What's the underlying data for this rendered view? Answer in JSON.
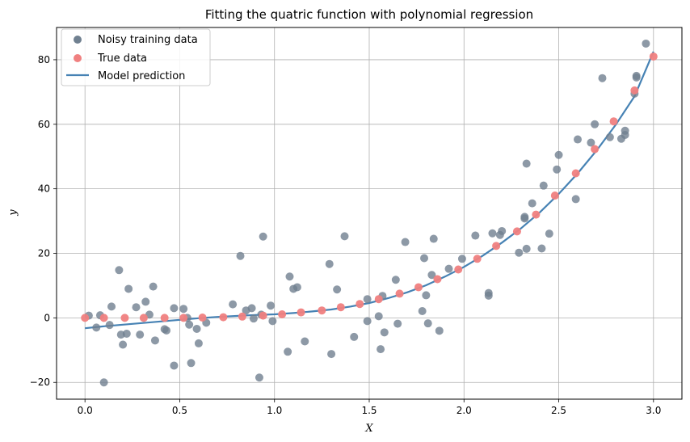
{
  "chart_data": {
    "type": "scatter",
    "title": "Fitting the quatric function with polynomial regression",
    "xlabel": "X",
    "ylabel": "y",
    "xlim": [
      -0.15,
      3.15
    ],
    "ylim": [
      -25.2,
      90.0
    ],
    "xticks": [
      0.0,
      0.5,
      1.0,
      1.5,
      2.0,
      2.5,
      3.0
    ],
    "xtick_labels": [
      "0.0",
      "0.5",
      "1.0",
      "1.5",
      "2.0",
      "2.5",
      "3.0"
    ],
    "yticks": [
      -20,
      0,
      20,
      40,
      60,
      80
    ],
    "ytick_labels": [
      "−20",
      "0",
      "20",
      "40",
      "60",
      "80"
    ],
    "grid": true,
    "legend_position": "upper-left",
    "colors": {
      "noisy": "#708090",
      "true": "#f08080",
      "model": "#4682b4"
    },
    "series": [
      {
        "name": "Noisy training data",
        "kind": "scatter",
        "points": [
          [
            0.02,
            0.7
          ],
          [
            0.06,
            -3.0
          ],
          [
            0.08,
            0.8
          ],
          [
            0.1,
            -20.0
          ],
          [
            0.13,
            -2.2
          ],
          [
            0.14,
            3.5
          ],
          [
            0.18,
            14.8
          ],
          [
            0.19,
            -5.2
          ],
          [
            0.2,
            -8.3
          ],
          [
            0.22,
            -4.9
          ],
          [
            0.23,
            9.0
          ],
          [
            0.27,
            3.3
          ],
          [
            0.29,
            -5.2
          ],
          [
            0.32,
            5.0
          ],
          [
            0.34,
            1.0
          ],
          [
            0.36,
            9.7
          ],
          [
            0.37,
            -7.0
          ],
          [
            0.42,
            -3.5
          ],
          [
            0.43,
            -3.9
          ],
          [
            0.47,
            3.0
          ],
          [
            0.47,
            -14.8
          ],
          [
            0.52,
            2.8
          ],
          [
            0.54,
            0.0
          ],
          [
            0.55,
            -2.1
          ],
          [
            0.56,
            -14.0
          ],
          [
            0.59,
            -3.4
          ],
          [
            0.6,
            -7.9
          ],
          [
            0.64,
            -1.5
          ],
          [
            0.78,
            4.2
          ],
          [
            0.82,
            19.2
          ],
          [
            0.85,
            2.3
          ],
          [
            0.88,
            3.0
          ],
          [
            0.89,
            -0.2
          ],
          [
            0.92,
            -18.5
          ],
          [
            0.93,
            1.0
          ],
          [
            0.94,
            25.2
          ],
          [
            0.98,
            3.8
          ],
          [
            0.99,
            -1.0
          ],
          [
            1.07,
            -10.5
          ],
          [
            1.08,
            12.8
          ],
          [
            1.1,
            9.0
          ],
          [
            1.12,
            9.5
          ],
          [
            1.16,
            -7.3
          ],
          [
            1.29,
            16.7
          ],
          [
            1.3,
            -11.2
          ],
          [
            1.33,
            8.8
          ],
          [
            1.37,
            25.3
          ],
          [
            1.42,
            -5.9
          ],
          [
            1.49,
            -1.0
          ],
          [
            1.49,
            5.8
          ],
          [
            1.55,
            0.5
          ],
          [
            1.56,
            -9.7
          ],
          [
            1.57,
            6.8
          ],
          [
            1.58,
            -4.5
          ],
          [
            1.64,
            11.8
          ],
          [
            1.65,
            -1.8
          ],
          [
            1.69,
            23.5
          ],
          [
            1.78,
            2.1
          ],
          [
            1.79,
            18.5
          ],
          [
            1.8,
            7.0
          ],
          [
            1.81,
            -1.7
          ],
          [
            1.83,
            13.3
          ],
          [
            1.84,
            24.5
          ],
          [
            1.87,
            -4.0
          ],
          [
            1.92,
            15.2
          ],
          [
            1.99,
            18.3
          ],
          [
            2.06,
            25.5
          ],
          [
            2.13,
            7.7
          ],
          [
            2.13,
            6.9
          ],
          [
            2.15,
            26.2
          ],
          [
            2.19,
            25.7
          ],
          [
            2.2,
            26.9
          ],
          [
            2.29,
            20.2
          ],
          [
            2.32,
            31.3
          ],
          [
            2.32,
            30.8
          ],
          [
            2.33,
            21.4
          ],
          [
            2.33,
            47.8
          ],
          [
            2.36,
            35.5
          ],
          [
            2.41,
            21.5
          ],
          [
            2.42,
            41.0
          ],
          [
            2.45,
            26.1
          ],
          [
            2.49,
            46.0
          ],
          [
            2.5,
            50.5
          ],
          [
            2.59,
            36.8
          ],
          [
            2.6,
            55.3
          ],
          [
            2.67,
            54.3
          ],
          [
            2.69,
            60.0
          ],
          [
            2.73,
            74.3
          ],
          [
            2.77,
            56.0
          ],
          [
            2.83,
            55.5
          ],
          [
            2.85,
            56.7
          ],
          [
            2.85,
            58.0
          ],
          [
            2.9,
            69.5
          ],
          [
            2.91,
            75.0
          ],
          [
            2.91,
            74.5
          ],
          [
            2.96,
            85.0
          ]
        ]
      },
      {
        "name": "True data",
        "kind": "scatter",
        "points": [
          [
            0.0,
            0.0
          ],
          [
            0.1,
            0.0
          ],
          [
            0.21,
            0.0
          ],
          [
            0.31,
            0.0
          ],
          [
            0.42,
            0.0
          ],
          [
            0.52,
            0.0
          ],
          [
            0.62,
            0.1
          ],
          [
            0.73,
            0.2
          ],
          [
            0.83,
            0.4
          ],
          [
            0.94,
            0.7
          ],
          [
            1.04,
            1.1
          ],
          [
            1.14,
            1.7
          ],
          [
            1.25,
            2.3
          ],
          [
            1.35,
            3.3
          ],
          [
            1.45,
            4.3
          ],
          [
            1.55,
            5.8
          ],
          [
            1.66,
            7.5
          ],
          [
            1.76,
            9.5
          ],
          [
            1.86,
            12.0
          ],
          [
            1.97,
            15.0
          ],
          [
            2.07,
            18.3
          ],
          [
            2.17,
            22.3
          ],
          [
            2.28,
            26.8
          ],
          [
            2.38,
            32.0
          ],
          [
            2.48,
            37.9
          ],
          [
            2.59,
            44.8
          ],
          [
            2.69,
            52.3
          ],
          [
            2.79,
            60.9
          ],
          [
            2.9,
            70.5
          ],
          [
            3.0,
            81.0
          ]
        ]
      },
      {
        "name": "Model prediction",
        "kind": "line",
        "points": [
          [
            0.0,
            -3.2
          ],
          [
            0.1,
            -2.6
          ],
          [
            0.2,
            -2.1
          ],
          [
            0.3,
            -1.6
          ],
          [
            0.4,
            -1.1
          ],
          [
            0.5,
            -0.6
          ],
          [
            0.6,
            -0.1
          ],
          [
            0.7,
            0.3
          ],
          [
            0.8,
            0.6
          ],
          [
            0.9,
            0.9
          ],
          [
            1.0,
            1.1
          ],
          [
            1.1,
            1.5
          ],
          [
            1.2,
            2.0
          ],
          [
            1.3,
            2.6
          ],
          [
            1.4,
            3.5
          ],
          [
            1.5,
            4.6
          ],
          [
            1.6,
            6.1
          ],
          [
            1.7,
            7.9
          ],
          [
            1.8,
            10.1
          ],
          [
            1.9,
            12.8
          ],
          [
            2.0,
            15.8
          ],
          [
            2.1,
            19.3
          ],
          [
            2.2,
            23.3
          ],
          [
            2.3,
            27.7
          ],
          [
            2.4,
            32.7
          ],
          [
            2.5,
            38.4
          ],
          [
            2.6,
            44.8
          ],
          [
            2.7,
            51.9
          ],
          [
            2.8,
            59.8
          ],
          [
            2.9,
            68.7
          ],
          [
            3.0,
            82.5
          ]
        ]
      }
    ]
  }
}
